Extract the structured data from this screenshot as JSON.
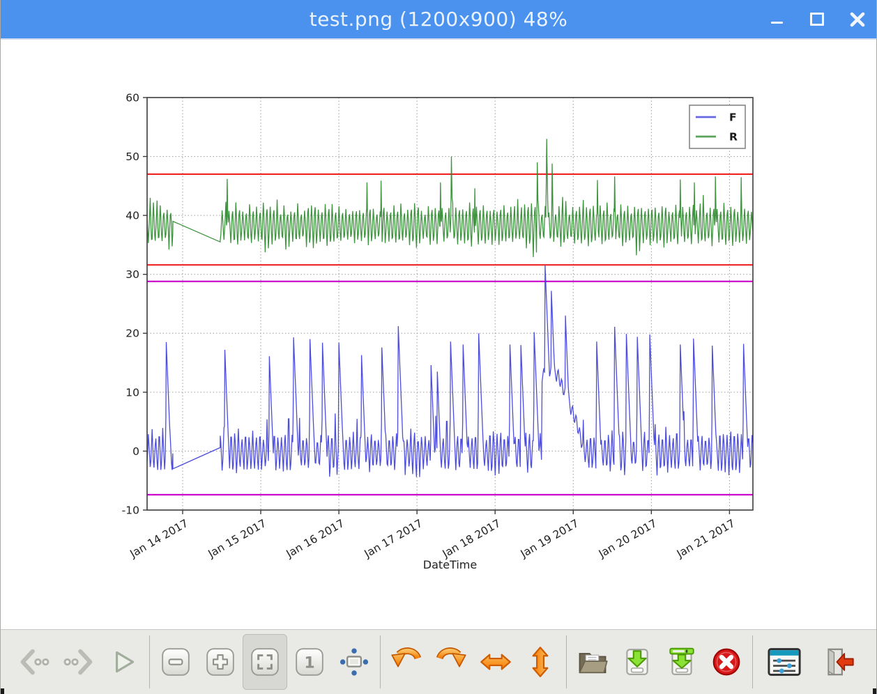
{
  "window": {
    "title": "test.png (1200x900) 48%",
    "controls": [
      "minimize",
      "maximize",
      "close"
    ]
  },
  "toolbar": {
    "active_item": "fit-window",
    "original_size_glyph": "1",
    "items": [
      "previous-image",
      "next-image",
      "play-slideshow",
      "zoom-out",
      "zoom-in",
      "fit-window",
      "original-size",
      "full-screen",
      "rotate-counterclockwise",
      "rotate-clockwise",
      "flip-horizontal",
      "flip-vertical",
      "open-file",
      "save-file",
      "save-as",
      "delete-file",
      "preferences",
      "quit"
    ],
    "accent_orange": "#f57900",
    "accent_green": "#73d216",
    "accent_red": "#d40000"
  },
  "chart_data": {
    "type": "line",
    "title": "",
    "xlabel": "DateTime",
    "ylabel": "",
    "ylim": [
      -10,
      60
    ],
    "y_ticks": [
      -10,
      0,
      10,
      20,
      30,
      40,
      50,
      60
    ],
    "x_tick_labels": [
      "Jan 14 2017",
      "Jan 15 2017",
      "Jan 16 2017",
      "Jan 17 2017",
      "Jan 18 2017",
      "Jan 19 2017",
      "Jan 20 2017",
      "Jan 21 2017"
    ],
    "xlim_days": [
      -0.455,
      7.3
    ],
    "grid": true,
    "legend": {
      "position": "upper right",
      "entries": [
        {
          "label": "F",
          "color": "#3f3fd9"
        },
        {
          "label": "R",
          "color": "#2f8b2f"
        }
      ]
    },
    "hlines": [
      {
        "y": 47.0,
        "color": "#ee2222"
      },
      {
        "y": 31.6,
        "color": "#ee2222"
      },
      {
        "y": 28.8,
        "color": "#cc00cc"
      },
      {
        "y": -7.4,
        "color": "#cc00cc"
      }
    ],
    "data_gap": {
      "start_day": -0.125,
      "end_day": 0.48
    },
    "series": [
      {
        "name": "F",
        "color": "#3f3fd9",
        "seed": 11,
        "period_days": 0.046,
        "baseline_band": [
          -4.3,
          3.9
        ],
        "dip_extra": 3.0,
        "bump_extra": 4.3,
        "gap_endpoint_values": [
          -3.0,
          0.6
        ],
        "spike_rise_per_day": 2600,
        "spike_fall_per_day": 330,
        "spikes": [
          [
            -0.21,
            18.5
          ],
          [
            0.54,
            17.2
          ],
          [
            1.11,
            16.1
          ],
          [
            1.42,
            19.3
          ],
          [
            1.63,
            19.0
          ],
          [
            1.79,
            18.4
          ],
          [
            2.0,
            18.4
          ],
          [
            2.29,
            16.3
          ],
          [
            2.55,
            17.6
          ],
          [
            2.76,
            21.2
          ],
          [
            3.18,
            14.6
          ],
          [
            3.26,
            13.5
          ],
          [
            3.43,
            18.6
          ],
          [
            3.59,
            18.1
          ],
          [
            3.79,
            20.0
          ],
          [
            4.19,
            18.1
          ],
          [
            4.33,
            18.0
          ],
          [
            4.5,
            20.2
          ],
          [
            4.64,
            31.5
          ],
          [
            4.72,
            27.2
          ],
          [
            4.9,
            23.0
          ],
          [
            5.3,
            18.6
          ],
          [
            5.53,
            21.1
          ],
          [
            5.68,
            19.9
          ],
          [
            5.82,
            19.4
          ],
          [
            5.98,
            19.8
          ],
          [
            6.37,
            18.1
          ],
          [
            6.54,
            19.1
          ],
          [
            6.78,
            17.9
          ],
          [
            7.18,
            18.2
          ]
        ],
        "elevated_floors": [
          [
            4.6,
            4.8,
            13,
            13
          ],
          [
            4.8,
            5.04,
            13,
            5
          ],
          [
            5.04,
            5.16,
            5,
            -1
          ]
        ]
      },
      {
        "name": "R",
        "color": "#2f8b2f",
        "seed": 77,
        "period_days": 0.044,
        "baseline_band": [
          34.2,
          42.4
        ],
        "dip_extra": 1.8,
        "bump_extra": 2.4,
        "gap_endpoint_values": [
          39.0,
          35.5
        ],
        "spike_rise_per_day": 1500,
        "spike_fall_per_day": 800,
        "spikes": [
          [
            0.57,
            46.2
          ],
          [
            2.36,
            45.6
          ],
          [
            2.54,
            45.9
          ],
          [
            3.3,
            45.6
          ],
          [
            3.44,
            50.0
          ],
          [
            3.74,
            44.6
          ],
          [
            4.54,
            49.0
          ],
          [
            4.66,
            53.0
          ],
          [
            4.73,
            48.8
          ],
          [
            5.31,
            46.0
          ],
          [
            5.53,
            46.6
          ],
          [
            6.37,
            46.1
          ],
          [
            6.55,
            45.6
          ],
          [
            6.82,
            46.6
          ],
          [
            7.15,
            46.5
          ]
        ],
        "elevated_floors": []
      }
    ]
  }
}
